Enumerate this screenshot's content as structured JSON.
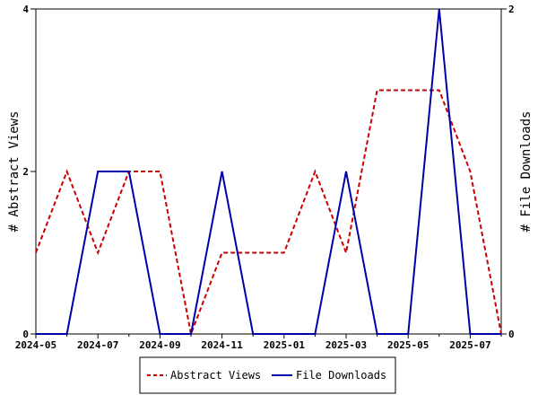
{
  "chart_data": {
    "type": "line",
    "title": "",
    "x": [
      "2024-05",
      "2024-06",
      "2024-07",
      "2024-08",
      "2024-09",
      "2024-10",
      "2024-11",
      "2024-12",
      "2025-01",
      "2025-02",
      "2025-03",
      "2025-04",
      "2025-05",
      "2025-06",
      "2025-07",
      "2025-08"
    ],
    "x_tick_labels": [
      "2024-05",
      "2024-07",
      "2024-09",
      "2024-11",
      "2025-01",
      "2025-03",
      "2025-05",
      "2025-07"
    ],
    "series": [
      {
        "name": "Abstract Views",
        "axis": "left",
        "color": "#cc0000",
        "style": "dashed",
        "values": [
          1,
          2,
          1,
          2,
          2,
          0,
          1,
          1,
          1,
          2,
          1,
          3,
          3,
          3,
          2,
          0
        ]
      },
      {
        "name": "File Downloads",
        "axis": "right",
        "color": "#0000aa",
        "style": "solid",
        "values": [
          0,
          0,
          1,
          1,
          0,
          0,
          1,
          0,
          0,
          0,
          1,
          0,
          0,
          2,
          0,
          0
        ]
      }
    ],
    "y_left": {
      "label": "# Abstract Views",
      "ylim": [
        0,
        4
      ],
      "ticks": [
        "0",
        "2",
        "4"
      ]
    },
    "y_right": {
      "label": "# File Downloads",
      "ylim": [
        0,
        2
      ],
      "ticks": [
        "0",
        "2"
      ]
    },
    "grid": false,
    "legend": {
      "placement": "bottom-center"
    }
  }
}
